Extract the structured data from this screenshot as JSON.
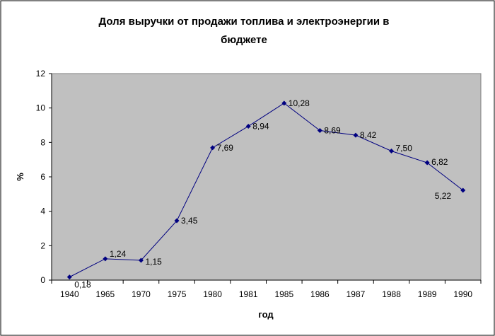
{
  "chart_data": {
    "type": "line",
    "title_lines": [
      "Доля выручки от продажи топлива и электроэнергии в",
      "бюджете"
    ],
    "xlabel": "год",
    "ylabel": "%",
    "categories": [
      "1940",
      "1965",
      "1970",
      "1975",
      "1980",
      "1981",
      "1985",
      "1986",
      "1987",
      "1988",
      "1989",
      "1990"
    ],
    "values": [
      0.18,
      1.24,
      1.15,
      3.45,
      7.69,
      8.94,
      10.28,
      8.69,
      8.42,
      7.5,
      6.82,
      5.22
    ],
    "value_labels": [
      "0,18",
      "1,24",
      "1,15",
      "3,45",
      "7,69",
      "8,94",
      "10,28",
      "8,69",
      "8,42",
      "7,50",
      "6,82",
      "5,22"
    ],
    "ylim": [
      0,
      12
    ],
    "yticks": [
      0,
      2,
      4,
      6,
      8,
      10,
      12
    ],
    "grid": false,
    "legend": false,
    "colors": {
      "line": "#000080",
      "plot_area": "#c0c0c0",
      "frame": "#808080"
    }
  }
}
